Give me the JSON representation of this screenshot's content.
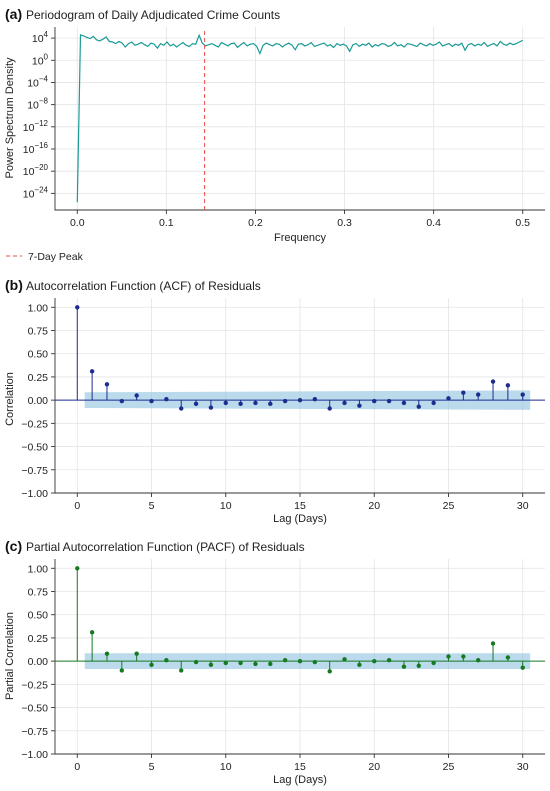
{
  "chart_data": [
    {
      "id": "a",
      "type": "line",
      "panel_label": "(a)",
      "title": "Periodogram of Daily Adjudicated Crime Counts",
      "xlabel": "Frequency",
      "ylabel": "Power Spectrum Density",
      "yscale": "log",
      "xlim": [
        -0.025,
        0.525
      ],
      "ylim_exponent": [
        -27,
        6
      ],
      "xticks": [
        0.0,
        0.1,
        0.2,
        0.3,
        0.4,
        0.5
      ],
      "xtick_labels": [
        "0.0",
        "0.1",
        "0.2",
        "0.3",
        "0.4",
        "0.5"
      ],
      "yticks_exponent": [
        4,
        0,
        -4,
        -8,
        -12,
        -16,
        -20,
        -24
      ],
      "ytick_labels": [
        "10",
        "10",
        "10",
        "10",
        "10",
        "10",
        "10",
        "10"
      ],
      "ytick_exponent_labels": [
        "4",
        "0",
        "−4",
        "−8",
        "−12",
        "−16",
        "−20",
        "−24"
      ],
      "grid": true,
      "line_color": "#1a9a96",
      "series_log10_power": [
        -25.6,
        4.6,
        4.4,
        4.1,
        3.9,
        4.3,
        3.7,
        3.5,
        3.8,
        4.2,
        3.4,
        3.3,
        3.0,
        3.4,
        3.1,
        2.4,
        3.0,
        3.3,
        2.7,
        2.9,
        3.2,
        2.8,
        2.5,
        3.1,
        2.9,
        2.2,
        3.0,
        2.7,
        3.3,
        2.6,
        2.9,
        2.4,
        2.8,
        3.2,
        2.7,
        2.5,
        3.0,
        2.9,
        4.5,
        3.1,
        2.6,
        2.8,
        3.0,
        2.7,
        2.4,
        3.2,
        2.9,
        2.6,
        3.0,
        3.1,
        2.3,
        2.8,
        3.2,
        2.6,
        2.9,
        3.0,
        2.5,
        1.2,
        2.7,
        3.1,
        2.8,
        2.6,
        3.0,
        2.9,
        2.4,
        2.8,
        3.1,
        2.7,
        1.9,
        2.9,
        3.0,
        2.6,
        2.8,
        3.2,
        2.5,
        2.7,
        2.9,
        3.1,
        2.6,
        2.8,
        2.3,
        3.0,
        2.7,
        2.9,
        2.6,
        1.6,
        2.8,
        3.0,
        2.5,
        2.9,
        2.7,
        3.1,
        2.4,
        2.8,
        2.6,
        3.0,
        2.9,
        2.5,
        2.7,
        3.2,
        2.6,
        2.8,
        2.4,
        3.0,
        2.9,
        2.7,
        2.5,
        3.1,
        2.8,
        2.6,
        3.0,
        2.7,
        2.9,
        3.3,
        2.6,
        2.8,
        3.0,
        2.5,
        2.9,
        2.7,
        3.1,
        1.8,
        2.8,
        3.0,
        2.6,
        2.9,
        2.7,
        3.2,
        2.5,
        2.8,
        3.0,
        2.6,
        3.4,
        2.9,
        2.7,
        3.1,
        2.8,
        3.0,
        3.3,
        3.6
      ],
      "peak": {
        "frequency": 0.1429,
        "label": "7-Day Peak",
        "color": "#e8504a"
      },
      "legend_placement": "below-left"
    },
    {
      "id": "b",
      "type": "stem",
      "panel_label": "(b)",
      "title": "Autocorrelation Function (ACF) of Residuals",
      "xlabel": "Lag (Days)",
      "ylabel": "Correlation",
      "xlim": [
        -1.5,
        31.5
      ],
      "ylim": [
        -1.0,
        1.1
      ],
      "xticks": [
        0,
        5,
        10,
        15,
        20,
        25,
        30
      ],
      "yticks": [
        1.0,
        0.75,
        0.5,
        0.25,
        0.0,
        -0.25,
        -0.5,
        -0.75,
        -1.0
      ],
      "ytick_labels": [
        "1.00",
        "0.75",
        "0.50",
        "0.25",
        "0.00",
        "−0.25",
        "−0.50",
        "−0.75",
        "−1.00"
      ],
      "grid": true,
      "color": "#1f2c8f",
      "band_color": "#8ec1df",
      "confidence_band": [
        [
          0.5,
          0.085
        ],
        [
          30.5,
          0.105
        ]
      ],
      "lags": [
        0,
        1,
        2,
        3,
        4,
        5,
        6,
        7,
        8,
        9,
        10,
        11,
        12,
        13,
        14,
        15,
        16,
        17,
        18,
        19,
        20,
        21,
        22,
        23,
        24,
        25,
        26,
        27,
        28,
        29,
        30
      ],
      "values": [
        1.0,
        0.31,
        0.17,
        -0.01,
        0.05,
        -0.01,
        0.01,
        -0.09,
        -0.04,
        -0.08,
        -0.03,
        -0.04,
        -0.03,
        -0.04,
        -0.01,
        0.0,
        0.01,
        -0.09,
        -0.03,
        -0.06,
        -0.01,
        -0.01,
        -0.03,
        -0.07,
        -0.03,
        0.02,
        0.08,
        0.06,
        0.2,
        0.16,
        0.06
      ]
    },
    {
      "id": "c",
      "type": "stem",
      "panel_label": "(c)",
      "title": "Partial Autocorrelation Function (PACF) of Residuals",
      "xlabel": "Lag (Days)",
      "ylabel": "Partial Correlation",
      "xlim": [
        -1.5,
        31.5
      ],
      "ylim": [
        -1.0,
        1.1
      ],
      "xticks": [
        0,
        5,
        10,
        15,
        20,
        25,
        30
      ],
      "yticks": [
        1.0,
        0.75,
        0.5,
        0.25,
        0.0,
        -0.25,
        -0.5,
        -0.75,
        -1.0
      ],
      "ytick_labels": [
        "1.00",
        "0.75",
        "0.50",
        "0.25",
        "0.00",
        "−0.25",
        "−0.50",
        "−0.75",
        "−1.00"
      ],
      "grid": true,
      "color": "#157a21",
      "band_color": "#8ec1df",
      "confidence_band": [
        [
          0.5,
          0.085
        ],
        [
          30.5,
          0.085
        ]
      ],
      "lags": [
        0,
        1,
        2,
        3,
        4,
        5,
        6,
        7,
        8,
        9,
        10,
        11,
        12,
        13,
        14,
        15,
        16,
        17,
        18,
        19,
        20,
        21,
        22,
        23,
        24,
        25,
        26,
        27,
        28,
        29,
        30
      ],
      "values": [
        1.0,
        0.31,
        0.08,
        -0.1,
        0.08,
        -0.04,
        0.01,
        -0.1,
        -0.01,
        -0.04,
        -0.02,
        -0.02,
        -0.03,
        -0.03,
        0.01,
        0.0,
        -0.01,
        -0.11,
        0.02,
        -0.04,
        0.0,
        0.01,
        -0.06,
        -0.05,
        -0.02,
        0.05,
        0.05,
        0.01,
        0.19,
        0.04,
        -0.07
      ]
    }
  ]
}
